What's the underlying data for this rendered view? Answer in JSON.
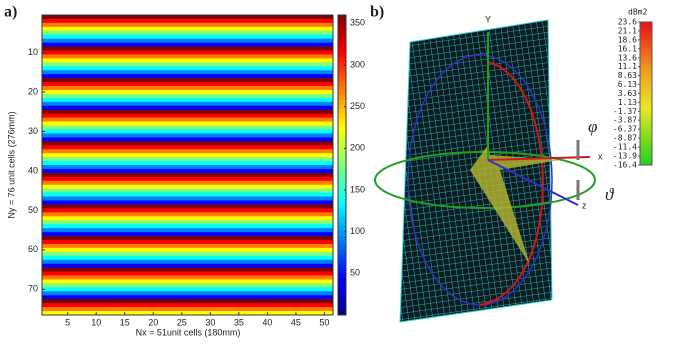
{
  "chart_data": [
    {
      "type": "heatmap",
      "panel_label": "a)",
      "x_label": "Nx = 51unit cells (180mm)",
      "y_label": "Ny = 76 unit cells (276mm)",
      "columns": 51,
      "row_values": [
        360,
        315,
        270,
        225,
        180,
        135,
        90,
        45,
        360,
        315,
        270,
        225,
        180,
        135,
        90,
        45,
        360,
        315,
        270,
        225,
        180,
        135,
        90,
        45,
        360,
        315,
        270,
        225,
        180,
        135,
        90,
        45,
        360,
        315,
        270,
        225,
        180,
        135,
        90,
        45,
        360,
        315,
        270,
        225,
        180,
        135,
        90,
        45,
        360,
        315,
        270,
        225,
        180,
        135,
        90,
        45,
        360,
        315,
        270,
        225,
        180,
        135,
        90,
        45,
        360,
        315,
        270,
        225,
        180,
        135,
        90,
        45,
        360,
        315,
        270,
        225
      ],
      "xlim": [
        0.5,
        51.5
      ],
      "xticks": [
        5,
        10,
        15,
        20,
        25,
        30,
        35,
        40,
        45,
        50
      ],
      "ylim": [
        0.5,
        76.5
      ],
      "yticks": [
        10,
        20,
        30,
        40,
        50,
        60,
        70
      ],
      "colormap": "jet",
      "clim": [
        0,
        360
      ],
      "cticks": [
        50,
        100,
        150,
        200,
        250,
        300,
        350
      ]
    },
    {
      "type": "3d-radar-pattern",
      "panel_label": "b)",
      "axis_labels": [
        "Y",
        "x",
        "z"
      ],
      "angle_labels": [
        "φ",
        "ϑ"
      ],
      "colorbar_unit": "dBm2",
      "cticks": [
        23.6,
        21.1,
        18.6,
        16.1,
        13.6,
        11.1,
        8.63,
        6.13,
        3.63,
        1.13,
        -1.37,
        -3.87,
        -6.37,
        -8.87,
        -11.4,
        -13.9,
        -16.4
      ]
    }
  ]
}
